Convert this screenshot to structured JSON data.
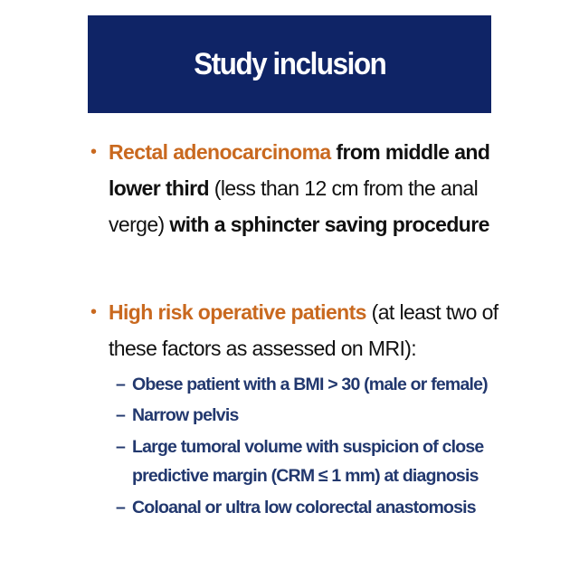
{
  "title": "Study inclusion",
  "bullets": [
    {
      "highlight": "Rectal adenocarcinoma",
      "part1_bold": " from middle and lower third",
      "part2_normal": " (less than 12 cm from the anal verge)",
      "part3_bold": " with a sphincter saving procedure"
    },
    {
      "highlight": "High risk operative patients",
      "rest": "  (at least two of these factors as assessed on MRI):"
    }
  ],
  "sub_items": [
    "Obese patient with a BMI > 30 (male or female)",
    "Narrow pelvis",
    "Large tumoral volume with suspicion of close predictive margin (CRM ≤ 1 mm) at diagnosis",
    "Coloanal or ultra low colorectal anastomosis"
  ],
  "colors": {
    "title_band": "#0f2466",
    "highlight": "#c9691f",
    "sub_text": "#22386e"
  }
}
